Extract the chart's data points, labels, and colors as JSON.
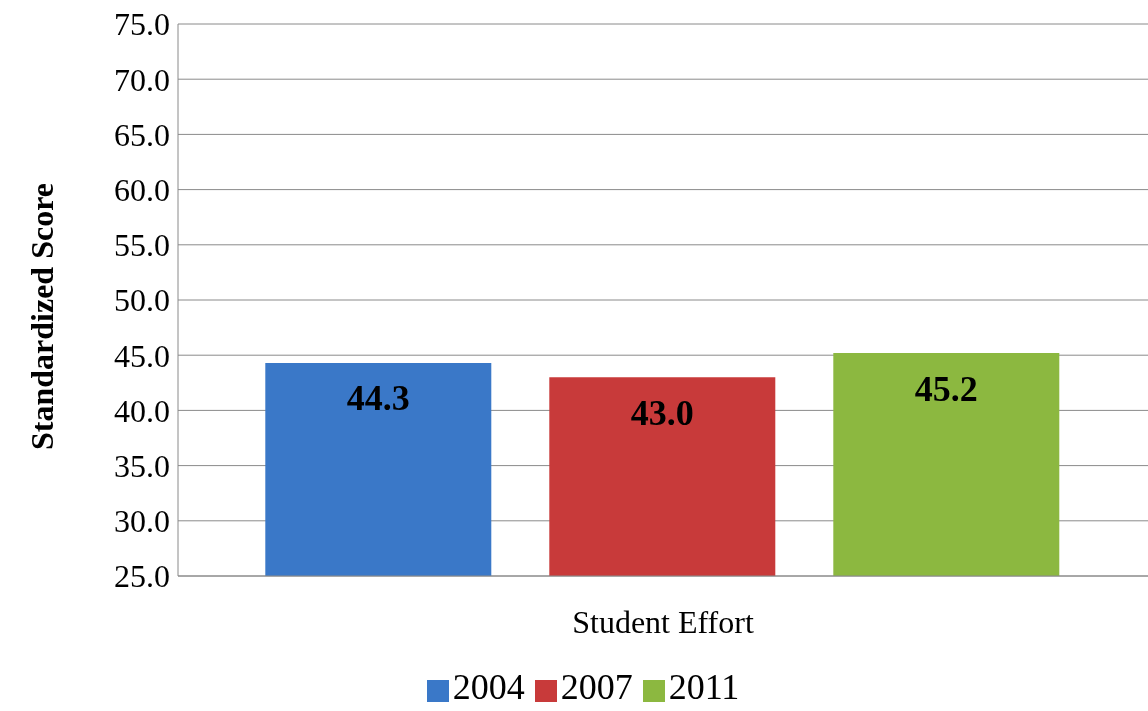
{
  "chart_data": {
    "type": "bar",
    "categories": [
      "Student Effort"
    ],
    "series": [
      {
        "name": "2004",
        "color": "#3a78c8",
        "values": [
          44.3
        ],
        "value_labels": [
          "44.3"
        ]
      },
      {
        "name": "2007",
        "color": "#c83a3a",
        "values": [
          43.0
        ],
        "value_labels": [
          "43.0"
        ]
      },
      {
        "name": "2011",
        "color": "#8cb840",
        "values": [
          45.2
        ],
        "value_labels": [
          "45.2"
        ]
      }
    ],
    "ylabel": "Standardized Score",
    "ylim": [
      25,
      75
    ],
    "yticks": [
      {
        "value": 25,
        "label": "25.0"
      },
      {
        "value": 30,
        "label": "30.0"
      },
      {
        "value": 35,
        "label": "35.0"
      },
      {
        "value": 40,
        "label": "40.0"
      },
      {
        "value": 45,
        "label": "45.0"
      },
      {
        "value": 50,
        "label": "50.0"
      },
      {
        "value": 55,
        "label": "55.0"
      },
      {
        "value": 60,
        "label": "60.0"
      },
      {
        "value": 65,
        "label": "65.0"
      },
      {
        "value": 70,
        "label": "70.0"
      },
      {
        "value": 75,
        "label": "75.0"
      }
    ],
    "grid": "y",
    "legend": "bottom"
  }
}
